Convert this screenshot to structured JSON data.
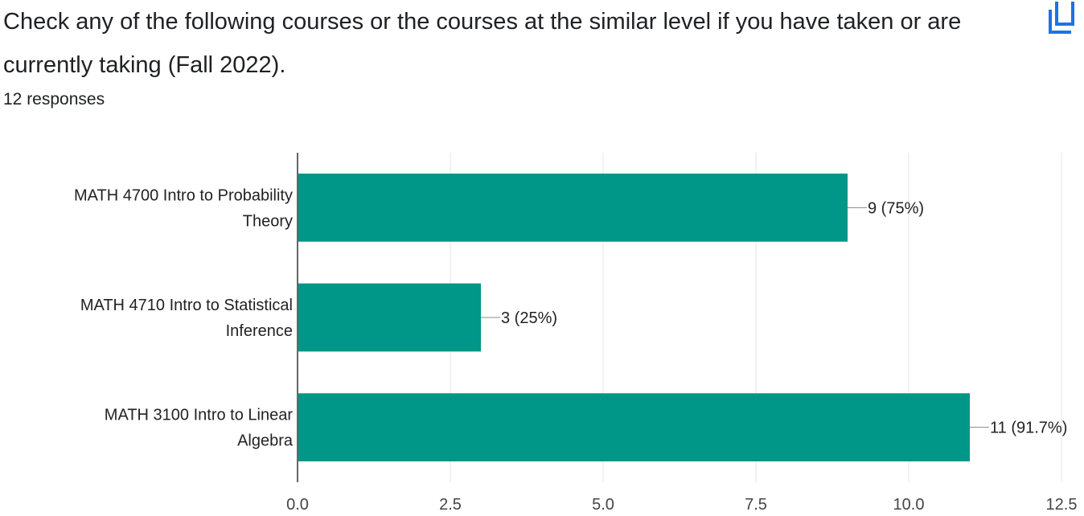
{
  "question": {
    "title": "Check any of the following courses or the courses at the similar level if you have taken or are currently taking (Fall 2022).",
    "responses": "12 responses"
  },
  "icons": {
    "copy": "copy-icon"
  },
  "colors": {
    "bar": "#009688",
    "accent": "#1a73e8"
  },
  "chart_data": {
    "type": "bar",
    "orientation": "horizontal",
    "categories": [
      [
        "MATH 4700 Intro to Probability",
        "Theory"
      ],
      [
        "MATH 4710 Intro to Statistical",
        "Inference"
      ],
      [
        "MATH 3100 Intro to Linear",
        "Algebra"
      ]
    ],
    "values": [
      9,
      3,
      11
    ],
    "data_labels": [
      "9 (75%)",
      "3 (25%)",
      "11 (91.7%)"
    ],
    "xlim": [
      0,
      12.5
    ],
    "x_ticks": [
      "0.0",
      "2.5",
      "5.0",
      "7.5",
      "10.0",
      "12.5"
    ],
    "grid": true,
    "legend": "none"
  }
}
